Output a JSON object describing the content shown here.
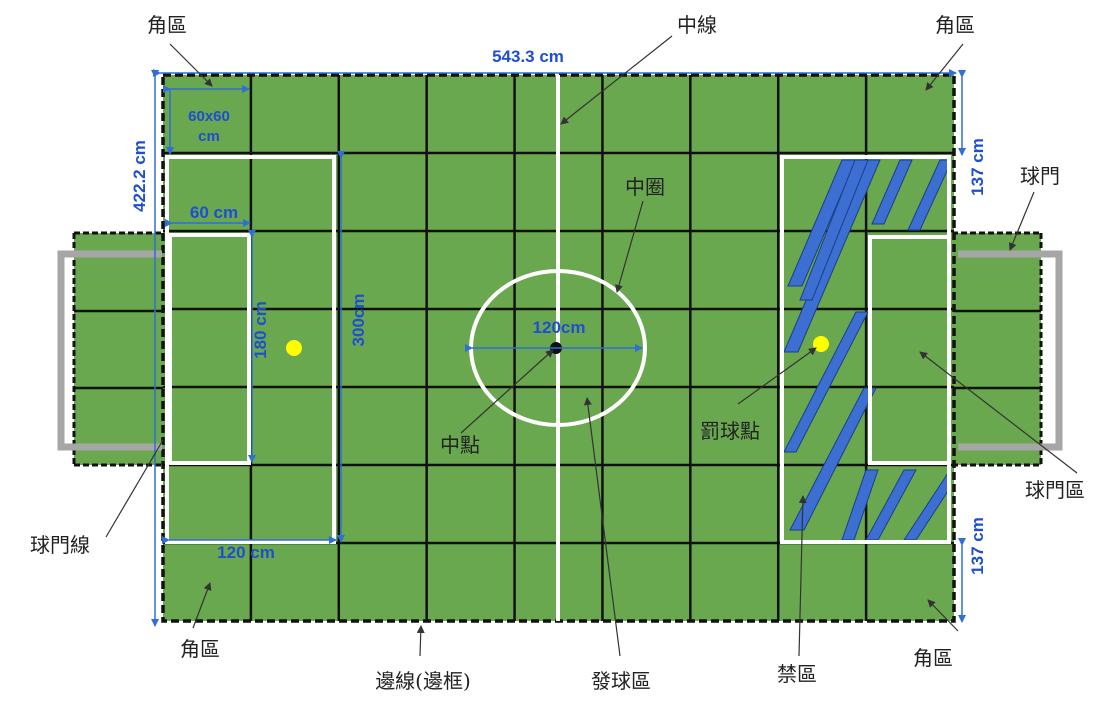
{
  "colors": {
    "field": "#6aa84f",
    "tile_border": "#111111",
    "line": "#ffffff",
    "dimension": "#1f4fd1",
    "goal_frame": "#a6a6a6",
    "stripe": "#3c6fd1",
    "ball": "#ffff00"
  },
  "labels": {
    "corner_tl": "角區",
    "center_line": "中線",
    "corner_tr": "角區",
    "center_circle": "中圈",
    "goal": "球門",
    "center_point": "中點",
    "penalty_spot": "罰球點",
    "goal_area": "球門區",
    "goal_line": "球門線",
    "corner_bl": "角區",
    "side_line": "邊線(邊框)",
    "kickoff_area": "發球區",
    "penalty_area": "禁區",
    "corner_br": "角區"
  },
  "dimensions": {
    "field_length": "543.3 cm",
    "field_width": "422.2 cm",
    "tile": "60x60",
    "tile_unit": "cm",
    "goal_area_depth": "60 cm",
    "goal_area_width": "180 cm",
    "penalty_width": "300cm",
    "penalty_depth": "120 cm",
    "circle_diameter": "120cm",
    "corner_offset_top": "137 cm",
    "corner_offset_bottom": "137 cm"
  },
  "icons": [
    "penalty-spot-ball-icon",
    "penalty-spot-ball-icon",
    "center-spot-icon"
  ]
}
